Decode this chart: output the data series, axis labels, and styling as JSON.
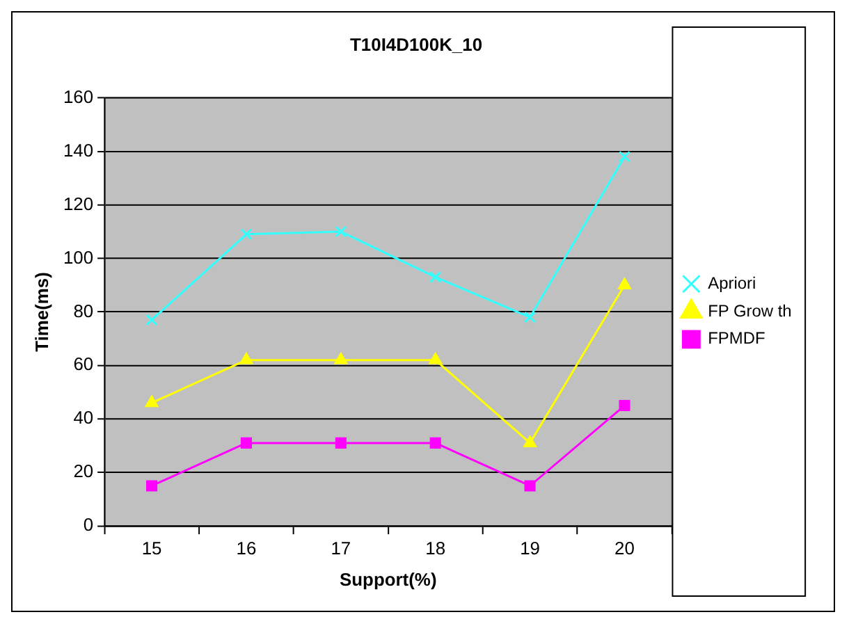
{
  "chart_data": {
    "type": "line",
    "title": "T10I4D100K_10",
    "xlabel": "Support(%)",
    "ylabel": "Time(ms)",
    "categories": [
      "15",
      "16",
      "17",
      "18",
      "19",
      "20"
    ],
    "series": [
      {
        "name": "Apriori",
        "color": "#33ffff",
        "marker": "cross",
        "values": [
          77,
          109,
          110,
          93,
          78,
          138
        ]
      },
      {
        "name": "FP Grow th",
        "color": "#ffff00",
        "marker": "triangle",
        "values": [
          46,
          62,
          62,
          62,
          31,
          90
        ]
      },
      {
        "name": "FPMDF",
        "color": "#ff00ff",
        "marker": "square",
        "values": [
          15,
          31,
          31,
          31,
          15,
          45
        ]
      }
    ],
    "ylim": [
      0,
      160
    ],
    "yticks": [
      0,
      20,
      40,
      60,
      80,
      100,
      120,
      140,
      160
    ],
    "grid": "y",
    "legend": "right",
    "line_style": "solid"
  }
}
